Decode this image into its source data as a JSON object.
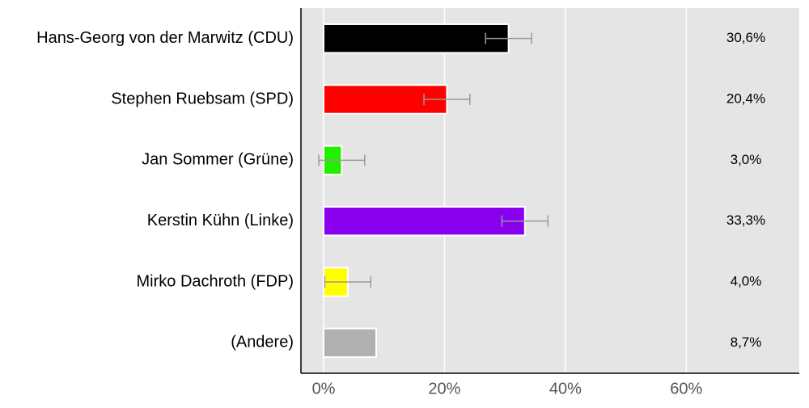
{
  "chart_data": {
    "type": "bar",
    "orientation": "horizontal",
    "categories": [
      "Hans-Georg von der Marwitz (CDU)",
      "Stephen Ruebsam (SPD)",
      "Jan Sommer (Grüne)",
      "Kerstin Kühn (Linke)",
      "Mirko Dachroth (FDP)",
      "(Andere)"
    ],
    "values": [
      30.6,
      20.4,
      3.0,
      33.3,
      4.0,
      8.7
    ],
    "value_labels": [
      "30,6%",
      "20,4%",
      "3,0%",
      "33,3%",
      "4,0%",
      "8,7%"
    ],
    "errors": [
      3.8,
      3.8,
      3.8,
      3.8,
      3.8,
      null
    ],
    "colors": [
      "#000000",
      "#ff0000",
      "#22ee00",
      "#8800ee",
      "#ffff00",
      "#b0b0b0"
    ],
    "xlim": [
      -3.75,
      78.7
    ],
    "xticks": [
      {
        "value": 0,
        "label": "0%"
      },
      {
        "value": 20,
        "label": "20%"
      },
      {
        "value": 40,
        "label": "40%"
      },
      {
        "value": 60,
        "label": "60%"
      }
    ],
    "grid": true
  }
}
